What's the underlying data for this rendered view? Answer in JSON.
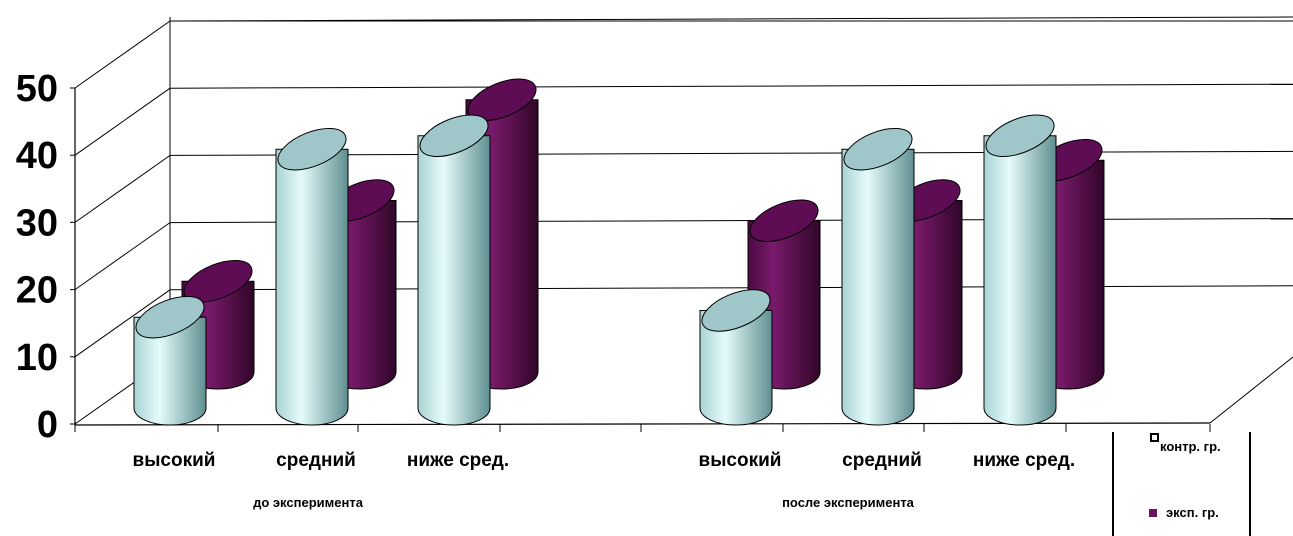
{
  "chart_data": {
    "type": "bar",
    "style": "3d-cylinder",
    "y_ticks": [
      "0",
      "10",
      "20",
      "30",
      "40",
      "50"
    ],
    "ylim": [
      0,
      50
    ],
    "grid": true,
    "legend_position": "bottom-right",
    "groups": [
      {
        "label": "до эксперимента",
        "categories": [
          "высокий",
          "средний",
          "ниже сред."
        ]
      },
      {
        "label": "после эксперимента",
        "categories": [
          "высокий",
          "средний",
          "ниже сред."
        ]
      }
    ],
    "categories": [
      "высокий",
      "средний",
      "ниже сред.",
      "высокий",
      "средний",
      "ниже сред."
    ],
    "series": [
      {
        "name": "контр. гр.",
        "color": "#c8ecec",
        "values": [
          15,
          40,
          42,
          16,
          40,
          42
        ]
      },
      {
        "name": "эксп. гр.",
        "color": "#6b0f5e",
        "values": [
          15,
          27,
          42,
          24,
          27,
          33
        ]
      }
    ]
  }
}
